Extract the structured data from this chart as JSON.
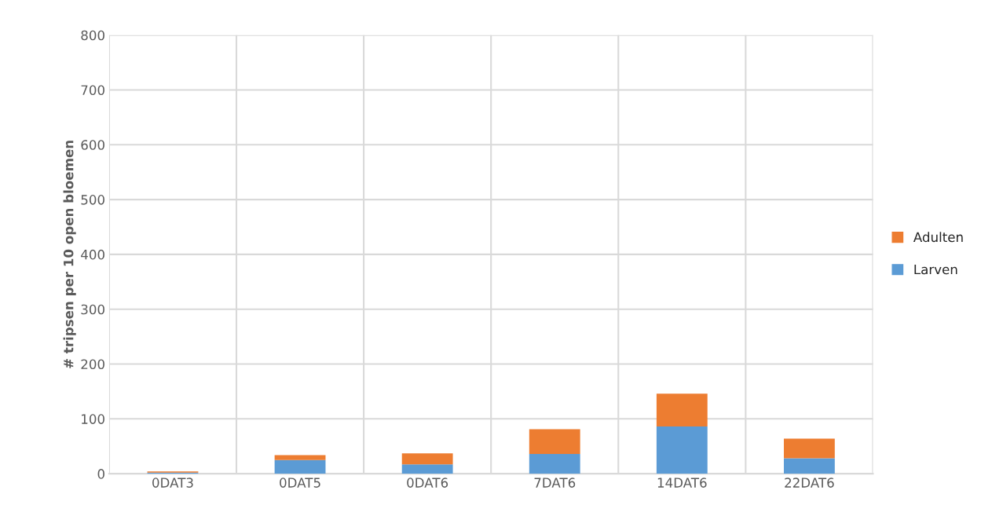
{
  "chart_data": {
    "type": "bar",
    "stacked": true,
    "categories": [
      "0DAT3",
      "0DAT5",
      "0DAT6",
      "7DAT6",
      "14DAT6",
      "22DAT6"
    ],
    "series": [
      {
        "name": "Larven",
        "color": "#5b9bd5",
        "values": [
          2,
          25,
          17,
          36,
          86,
          28
        ]
      },
      {
        "name": "Adulten",
        "color": "#ed7d31",
        "values": [
          2,
          9,
          20,
          45,
          60,
          36
        ]
      }
    ],
    "ylabel": "# tripsen per 10 open bloemen",
    "ylim": [
      0,
      800
    ],
    "yticks": [
      0,
      100,
      200,
      300,
      400,
      500,
      600,
      700,
      800
    ],
    "grid": true,
    "legend": "right"
  }
}
